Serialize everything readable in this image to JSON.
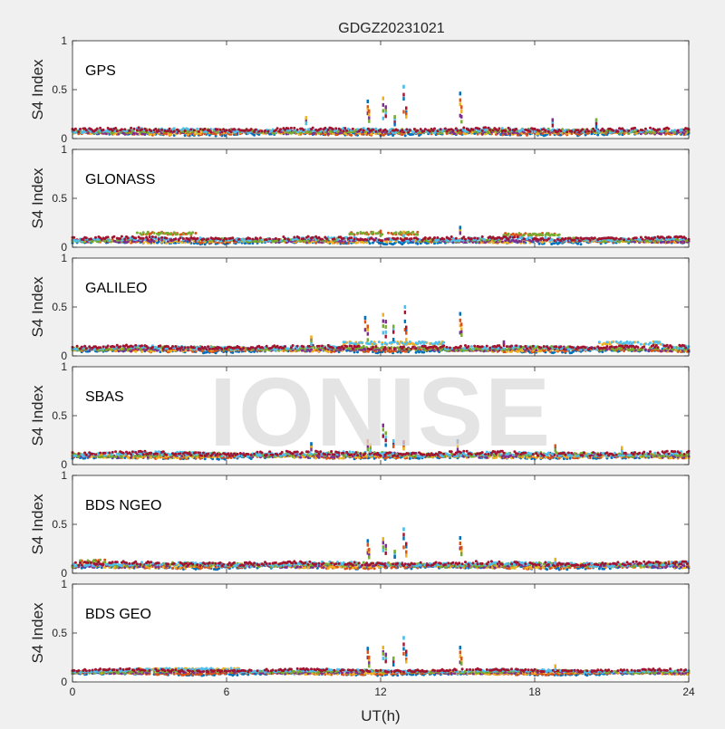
{
  "title": "GDGZ20231021",
  "watermark": "IONISE",
  "colors": {
    "background": "#f0f0f0",
    "axes": "#262626",
    "series": [
      "#0072BD",
      "#D95319",
      "#EDB120",
      "#7E2F8E",
      "#77AC30",
      "#4DBEEE",
      "#A2142F"
    ]
  },
  "chart_data": {
    "type": "scatter",
    "title": "GDGZ20231021",
    "xlabel": "UT(h)",
    "xlim": [
      0,
      24
    ],
    "xticks": [
      0,
      6,
      12,
      18,
      24
    ],
    "ylim": [
      0,
      1
    ],
    "yticks": [
      0,
      0.5,
      1
    ],
    "grid": false,
    "panels": [
      {
        "label": "GPS",
        "ylabel": "S4 Index",
        "baseline": 0.07,
        "noise": 0.018,
        "bumps": [],
        "spikes": [
          {
            "x": 11.5,
            "y": 0.38
          },
          {
            "x": 11.55,
            "y": 0.28
          },
          {
            "x": 12.1,
            "y": 0.41
          },
          {
            "x": 12.2,
            "y": 0.32
          },
          {
            "x": 12.55,
            "y": 0.22
          },
          {
            "x": 12.9,
            "y": 0.53
          },
          {
            "x": 13.0,
            "y": 0.31
          },
          {
            "x": 15.1,
            "y": 0.46
          },
          {
            "x": 15.15,
            "y": 0.32
          },
          {
            "x": 9.1,
            "y": 0.21
          },
          {
            "x": 18.7,
            "y": 0.19
          },
          {
            "x": 20.4,
            "y": 0.19
          }
        ]
      },
      {
        "label": "GLONASS",
        "ylabel": "S4 Index",
        "baseline": 0.07,
        "noise": 0.015,
        "bumps": [
          {
            "x0": 2.5,
            "x1": 4.8,
            "y": 0.14
          },
          {
            "x0": 10.8,
            "x1": 13.5,
            "y": 0.14
          },
          {
            "x0": 16.8,
            "x1": 19.0,
            "y": 0.13
          }
        ],
        "spikes": [
          {
            "x": 15.1,
            "y": 0.2
          },
          {
            "x": 12.0,
            "y": 0.16
          },
          {
            "x": 12.9,
            "y": 0.15
          }
        ]
      },
      {
        "label": "GALILEO",
        "ylabel": "S4 Index",
        "baseline": 0.07,
        "noise": 0.015,
        "bumps": [
          {
            "x0": 10.5,
            "x1": 14.5,
            "y": 0.13
          },
          {
            "x0": 20.5,
            "x1": 23.0,
            "y": 0.13
          }
        ],
        "spikes": [
          {
            "x": 11.4,
            "y": 0.39
          },
          {
            "x": 11.5,
            "y": 0.3
          },
          {
            "x": 12.1,
            "y": 0.42
          },
          {
            "x": 12.2,
            "y": 0.35
          },
          {
            "x": 12.5,
            "y": 0.3
          },
          {
            "x": 12.95,
            "y": 0.5
          },
          {
            "x": 13.0,
            "y": 0.29
          },
          {
            "x": 15.1,
            "y": 0.43
          },
          {
            "x": 15.15,
            "y": 0.32
          },
          {
            "x": 9.3,
            "y": 0.19
          },
          {
            "x": 16.8,
            "y": 0.14
          }
        ]
      },
      {
        "label": "SBAS",
        "ylabel": "S4 Index",
        "baseline": 0.095,
        "noise": 0.018,
        "bumps": [],
        "spikes": [
          {
            "x": 9.3,
            "y": 0.21
          },
          {
            "x": 11.5,
            "y": 0.24
          },
          {
            "x": 11.6,
            "y": 0.2
          },
          {
            "x": 12.1,
            "y": 0.4
          },
          {
            "x": 12.2,
            "y": 0.32
          },
          {
            "x": 12.5,
            "y": 0.24
          },
          {
            "x": 12.9,
            "y": 0.23
          },
          {
            "x": 15.0,
            "y": 0.24
          },
          {
            "x": 18.8,
            "y": 0.19
          },
          {
            "x": 21.4,
            "y": 0.17
          }
        ]
      },
      {
        "label": "BDS NGEO",
        "ylabel": "S4 Index",
        "baseline": 0.08,
        "noise": 0.017,
        "bumps": [
          {
            "x0": 0.3,
            "x1": 1.3,
            "y": 0.12
          },
          {
            "x0": 22.5,
            "x1": 24.0,
            "y": 0.1
          }
        ],
        "spikes": [
          {
            "x": 11.5,
            "y": 0.33
          },
          {
            "x": 11.55,
            "y": 0.24
          },
          {
            "x": 12.1,
            "y": 0.35
          },
          {
            "x": 12.2,
            "y": 0.28
          },
          {
            "x": 12.55,
            "y": 0.22
          },
          {
            "x": 12.9,
            "y": 0.45
          },
          {
            "x": 13.0,
            "y": 0.3
          },
          {
            "x": 15.1,
            "y": 0.36
          },
          {
            "x": 15.15,
            "y": 0.26
          },
          {
            "x": 18.8,
            "y": 0.14
          }
        ]
      },
      {
        "label": "BDS GEO",
        "ylabel": "S4 Index",
        "baseline": 0.1,
        "noise": 0.01,
        "bumps": [
          {
            "x0": 2.5,
            "x1": 6.5,
            "y": 0.13
          }
        ],
        "spikes": [
          {
            "x": 11.5,
            "y": 0.34
          },
          {
            "x": 11.55,
            "y": 0.25
          },
          {
            "x": 12.1,
            "y": 0.35
          },
          {
            "x": 12.2,
            "y": 0.28
          },
          {
            "x": 12.5,
            "y": 0.24
          },
          {
            "x": 12.9,
            "y": 0.45
          },
          {
            "x": 13.0,
            "y": 0.31
          },
          {
            "x": 15.1,
            "y": 0.35
          },
          {
            "x": 15.15,
            "y": 0.24
          },
          {
            "x": 18.8,
            "y": 0.16
          }
        ]
      }
    ]
  }
}
